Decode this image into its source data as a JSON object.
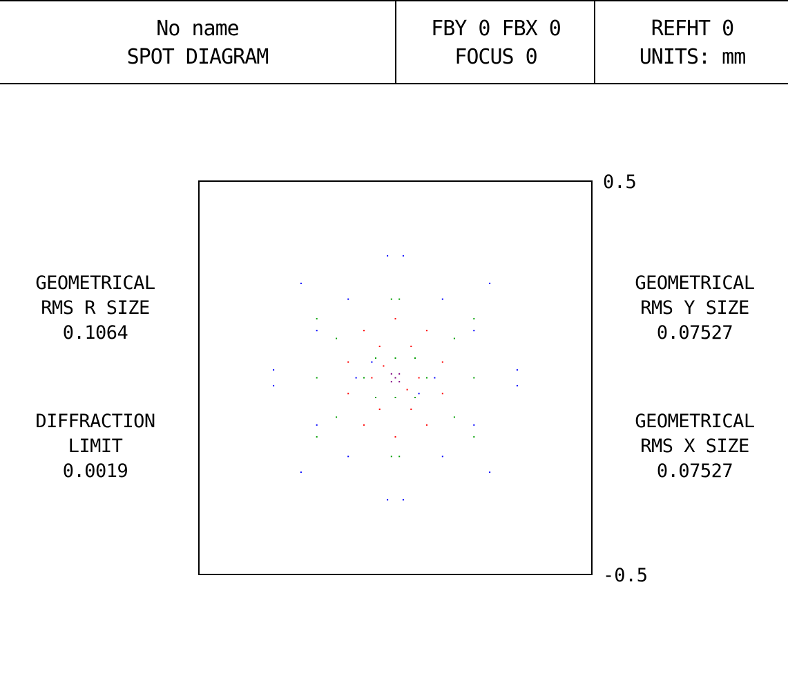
{
  "header": {
    "lens_name": "No name",
    "diagram_title": "SPOT DIAGRAM",
    "field": "FBY 0 FBX 0",
    "focus": "FOCUS 0",
    "refht": "REFHT 0",
    "units": "UNITS: mm"
  },
  "stats": {
    "rms_r": {
      "line1": "GEOMETRICAL",
      "line2": "RMS R SIZE",
      "value": "0.1064"
    },
    "diffraction": {
      "line1": "DIFFRACTION",
      "line2": "LIMIT",
      "value": "0.0019"
    },
    "rms_y": {
      "line1": "GEOMETRICAL",
      "line2": "RMS Y SIZE",
      "value": "0.07527"
    },
    "rms_x": {
      "line1": "GEOMETRICAL",
      "line2": "RMS X SIZE",
      "value": "0.07527"
    }
  },
  "colors": {
    "frame": "#000000",
    "red": "#ff0000",
    "green": "#00a000",
    "blue": "#0000ff"
  },
  "chart_data": {
    "type": "scatter",
    "title": "SPOT DIAGRAM",
    "xlim": [
      -0.5,
      0.5
    ],
    "ylim": [
      -0.5,
      0.5
    ],
    "y_tick_labels": {
      "top": "0.5",
      "bottom": "-0.5"
    },
    "grid": false,
    "series": [
      {
        "color": "#0000ff",
        "points": [
          [
            -0.02,
            0.31
          ],
          [
            0.02,
            0.31
          ],
          [
            -0.24,
            0.24
          ],
          [
            0.24,
            0.24
          ],
          [
            -0.12,
            0.2
          ],
          [
            0.12,
            0.2
          ],
          [
            -0.31,
            0.02
          ],
          [
            -0.31,
            -0.02
          ],
          [
            0.31,
            0.02
          ],
          [
            0.31,
            -0.02
          ],
          [
            -0.02,
            -0.31
          ],
          [
            0.02,
            -0.31
          ],
          [
            -0.24,
            -0.24
          ],
          [
            0.24,
            -0.24
          ],
          [
            -0.2,
            0.12
          ],
          [
            0.2,
            0.12
          ],
          [
            -0.2,
            -0.12
          ],
          [
            0.2,
            -0.12
          ],
          [
            -0.12,
            -0.2
          ],
          [
            0.12,
            -0.2
          ],
          [
            -0.06,
            0.04
          ],
          [
            0.06,
            -0.04
          ],
          [
            -0.1,
            0.0
          ],
          [
            0.1,
            0.0
          ]
        ]
      },
      {
        "color": "#00a000",
        "points": [
          [
            -0.01,
            0.2
          ],
          [
            0.01,
            0.2
          ],
          [
            -0.2,
            0.15
          ],
          [
            0.2,
            0.15
          ],
          [
            -0.2,
            -0.15
          ],
          [
            0.2,
            -0.15
          ],
          [
            -0.2,
            0.0
          ],
          [
            0.2,
            0.0
          ],
          [
            -0.01,
            -0.2
          ],
          [
            0.01,
            -0.2
          ],
          [
            -0.15,
            0.1
          ],
          [
            0.15,
            0.1
          ],
          [
            -0.15,
            -0.1
          ],
          [
            0.15,
            -0.1
          ],
          [
            -0.05,
            0.05
          ],
          [
            0.05,
            0.05
          ],
          [
            -0.05,
            -0.05
          ],
          [
            0.05,
            -0.05
          ],
          [
            0.0,
            0.05
          ],
          [
            0.0,
            -0.05
          ],
          [
            -0.08,
            0.0
          ],
          [
            0.08,
            0.0
          ]
        ]
      },
      {
        "color": "#ff0000",
        "points": [
          [
            -0.08,
            0.12
          ],
          [
            0.08,
            0.12
          ],
          [
            -0.08,
            -0.12
          ],
          [
            0.08,
            -0.12
          ],
          [
            -0.04,
            0.08
          ],
          [
            0.04,
            0.08
          ],
          [
            -0.04,
            -0.08
          ],
          [
            0.04,
            -0.08
          ],
          [
            -0.12,
            0.04
          ],
          [
            0.12,
            0.04
          ],
          [
            -0.12,
            -0.04
          ],
          [
            0.12,
            -0.04
          ],
          [
            0.0,
            0.15
          ],
          [
            0.0,
            -0.15
          ],
          [
            -0.06,
            0.0
          ],
          [
            0.06,
            0.0
          ],
          [
            -0.03,
            0.03
          ],
          [
            0.03,
            -0.03
          ]
        ]
      },
      {
        "color": "#800080",
        "points": [
          [
            0.0,
            0.0
          ],
          [
            -0.01,
            0.01
          ],
          [
            0.01,
            0.01
          ],
          [
            -0.01,
            -0.01
          ],
          [
            0.01,
            -0.01
          ]
        ]
      }
    ]
  }
}
